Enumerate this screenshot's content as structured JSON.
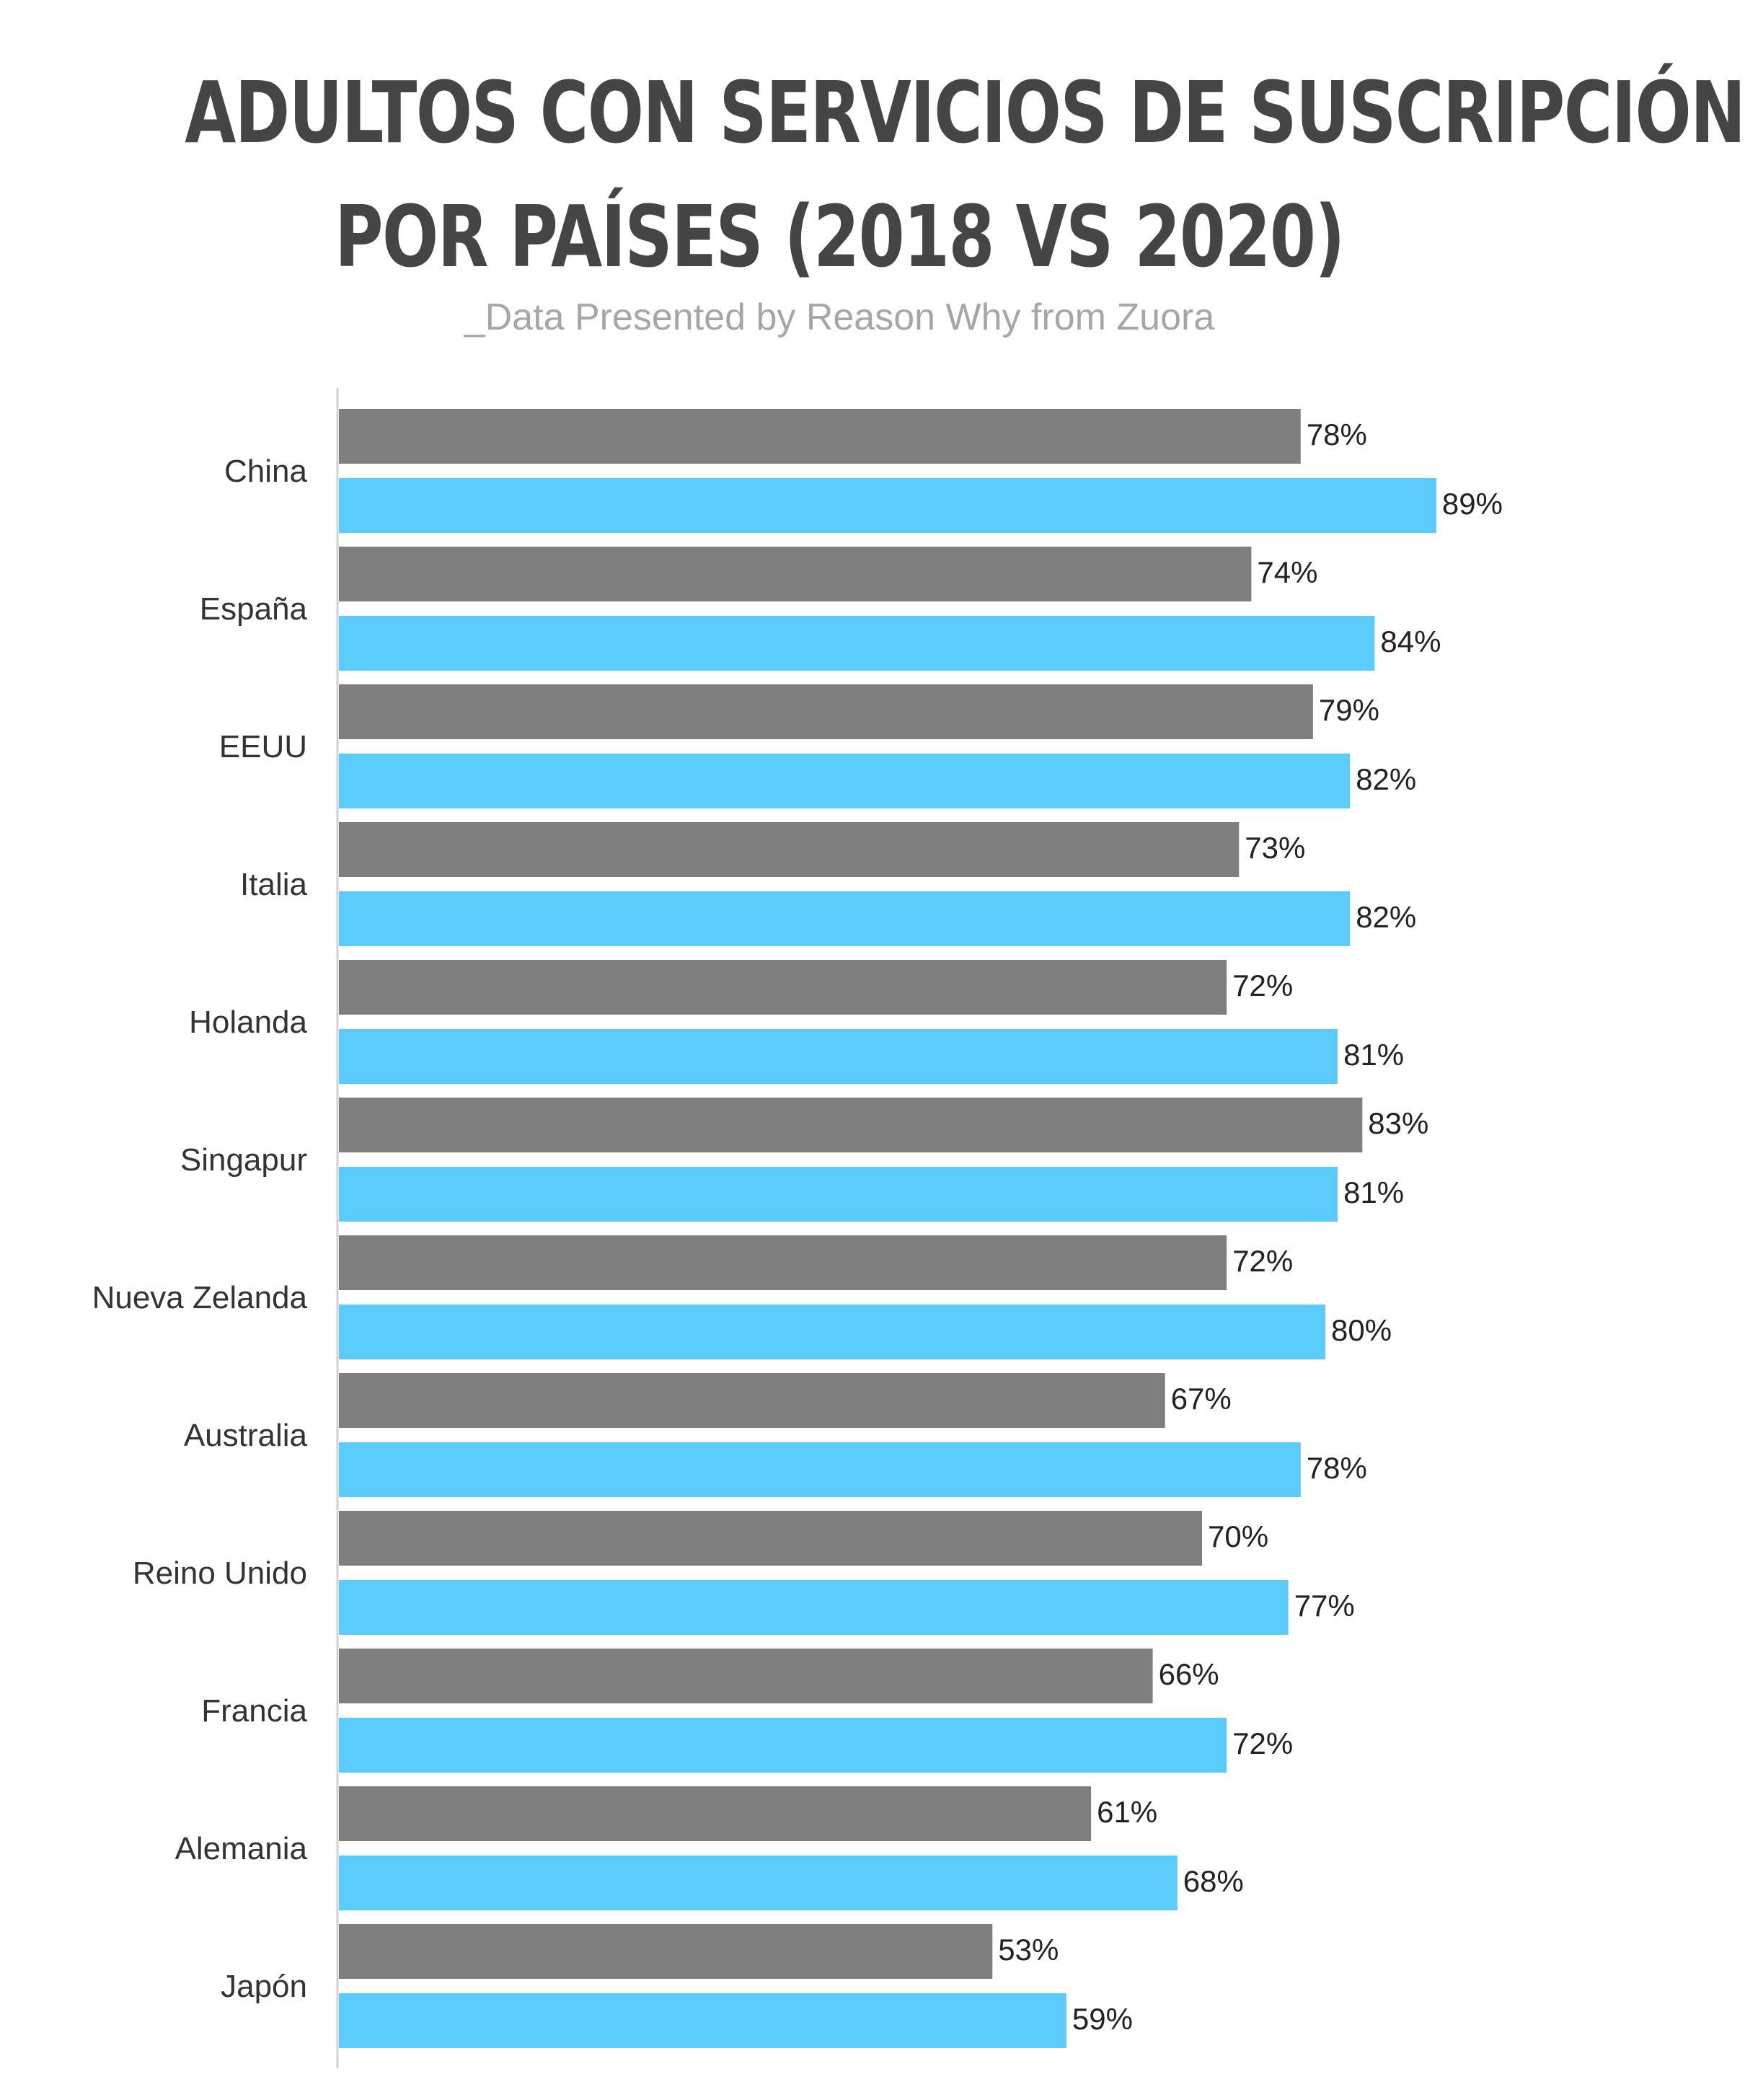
{
  "title_line1": "ADULTOS CON SERVICIOS DE SUSCRIPCIÓN",
  "title_line2": "POR PAÍSES (2018 VS 2020)",
  "subtitle": "_Data Presented by Reason Why from Zuora",
  "colors": {
    "series_2018": "#7f7f7f",
    "series_2020": "#5bcbfc",
    "axis": "#d0d0d0",
    "title": "#454545",
    "subtitle": "#a6a6a6"
  },
  "chart_data": {
    "type": "bar",
    "orientation": "horizontal",
    "title": "ADULTOS CON SERVICIOS DE SUSCRIPCIÓN POR PAÍSES (2018 VS 2020)",
    "subtitle": "_Data Presented by Reason Why from Zuora",
    "categories": [
      "China",
      "España",
      "EEUU",
      "Italia",
      "Holanda",
      "Singapur",
      "Nueva Zelanda",
      "Australia",
      "Reino Unido",
      "Francia",
      "Alemania",
      "Japón"
    ],
    "series": [
      {
        "values": [
          78,
          74,
          79,
          73,
          72,
          83,
          72,
          67,
          70,
          66,
          61,
          53
        ],
        "labels": [
          "78%",
          "74%",
          "79%",
          "73%",
          "72%",
          "83%",
          "72%",
          "67%",
          "70%",
          "66%",
          "61%",
          "53%"
        ]
      },
      {
        "values": [
          89,
          84,
          82,
          82,
          81,
          81,
          80,
          78,
          77,
          72,
          68,
          59
        ],
        "labels": [
          "89%",
          "84%",
          "82%",
          "82%",
          "81%",
          "81%",
          "80%",
          "78%",
          "77%",
          "72%",
          "68%",
          "59%"
        ]
      }
    ],
    "unit": "%",
    "xlim": [
      0,
      100
    ],
    "grid": false,
    "legend": "none"
  }
}
